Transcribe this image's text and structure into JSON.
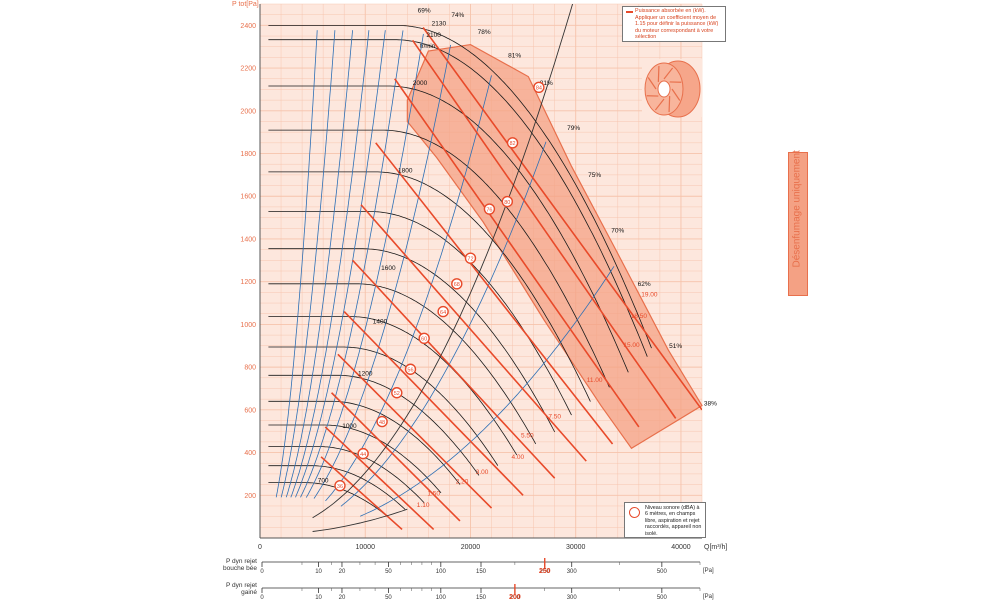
{
  "chart_data": {
    "type": "line",
    "xlabel": "Q[m³/h]",
    "ylabel": "P tot[Pa]",
    "xlim": [
      0,
      42000
    ],
    "ylim": [
      0,
      2500
    ],
    "x_ticks": [
      "0",
      "10000",
      "20000",
      "30000",
      "40000"
    ],
    "y_ticks": [
      "200",
      "400",
      "600",
      "800",
      "1000",
      "1200",
      "1400",
      "1600",
      "1800",
      "2000",
      "2200",
      "2400"
    ],
    "speed_unit": "tr/min",
    "speed_curves": [
      {
        "rpm": 700,
        "label": "700"
      },
      {
        "rpm": 1000,
        "label": "1000"
      },
      {
        "rpm": 1200,
        "label": "1200"
      },
      {
        "rpm": 1400,
        "label": "1400"
      },
      {
        "rpm": 1600,
        "label": "1600"
      },
      {
        "rpm": 1800,
        "label": "1800"
      },
      {
        "rpm": 2000,
        "label": "2000"
      },
      {
        "rpm": 2100,
        "label": "2100"
      },
      {
        "rpm": 2130,
        "label": "2130"
      }
    ],
    "efficiency_labels": [
      "69%",
      "74%",
      "78%",
      "81%",
      "81%",
      "79%",
      "75%",
      "70%",
      "62%",
      "51%",
      "38%"
    ],
    "power_labels_kw": [
      "1.10",
      "1.50",
      "2.20",
      "3.00",
      "4.00",
      "5.50",
      "7.50",
      "11.00",
      "15.00",
      "18.50",
      "19.00"
    ],
    "noise_levels_dba": [
      "36",
      "44",
      "48",
      "52",
      "56",
      "60",
      "64",
      "68",
      "72",
      "76",
      "80",
      "82",
      "84"
    ]
  },
  "legend": {
    "power_text": "Puissance absorbée en (kW). Appliquer un coefficient moyen de 1.15 pour définir la puissance (kW) du moteur correspondant à votre sélection",
    "noise_text": "Niveau sonore (dBA) à 6 mètres, en champs libre, aspiration et rejet raccordés, appareil non isolé."
  },
  "side_band": {
    "label": "Désenfumage uniquement"
  },
  "scales": [
    {
      "label": "P dyn rejet bouche bée",
      "unit": "[Pa]",
      "highlight": "250",
      "ticks": [
        "0",
        "10",
        "20",
        "50",
        "100",
        "150",
        "250",
        "300",
        "500"
      ]
    },
    {
      "label": "P dyn rejet gainé",
      "unit": "[Pa]",
      "highlight": "200",
      "ticks": [
        "0",
        "10",
        "20",
        "50",
        "100",
        "150",
        "200",
        "300",
        "500"
      ]
    }
  ],
  "colors": {
    "background": "#fde7dd",
    "grid": "#f6c3ab",
    "accent": "#e8704c",
    "power_line": "#e84a2a",
    "efficiency_line": "#2d6fb5",
    "speed_line": "#1a1a1a",
    "zone_fill": "#f4a184"
  }
}
